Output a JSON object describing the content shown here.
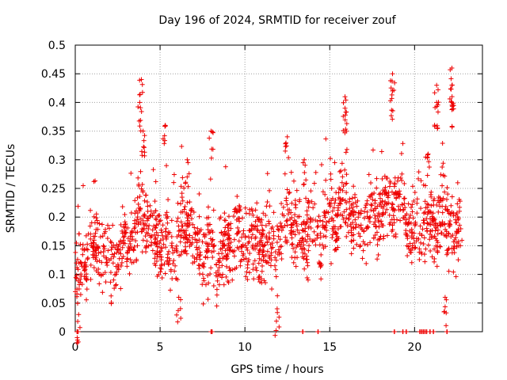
{
  "chart_data": {
    "type": "scatter",
    "title": "Day 196 of 2024, SRMTID for receiver zouf",
    "xlabel": "GPS time / hours",
    "ylabel": "SRMTID / TECUs",
    "xlim": [
      0,
      24
    ],
    "ylim": [
      0,
      0.5
    ],
    "x_ticks": [
      0,
      5,
      10,
      15,
      20
    ],
    "x_tick_labels": [
      "0",
      "5",
      "10",
      "15",
      "20"
    ],
    "y_ticks": [
      0,
      0.05,
      0.1,
      0.15,
      0.2,
      0.25,
      0.3,
      0.35,
      0.4,
      0.45,
      0.5
    ],
    "y_tick_labels": [
      "0",
      "0.05",
      "0.1",
      "0.15",
      "0.2",
      "0.25",
      "0.3",
      "0.35",
      "0.4",
      "0.45",
      "0.5"
    ],
    "grid": true,
    "marker": "+",
    "series_color": "#ee0000",
    "series": [
      {
        "name": "SRMTID",
        "profile": [
          [
            0.0,
            0.09
          ],
          [
            0.5,
            0.1
          ],
          [
            1.0,
            0.13
          ],
          [
            1.5,
            0.14
          ],
          [
            2.0,
            0.13
          ],
          [
            2.5,
            0.14
          ],
          [
            3.0,
            0.15
          ],
          [
            3.5,
            0.16
          ],
          [
            4.0,
            0.2
          ],
          [
            4.5,
            0.18
          ],
          [
            5.0,
            0.17
          ],
          [
            5.5,
            0.16
          ],
          [
            6.0,
            0.14
          ],
          [
            6.5,
            0.18
          ],
          [
            7.0,
            0.15
          ],
          [
            7.5,
            0.14
          ],
          [
            8.0,
            0.15
          ],
          [
            8.5,
            0.14
          ],
          [
            9.0,
            0.15
          ],
          [
            9.5,
            0.16
          ],
          [
            10.0,
            0.15
          ],
          [
            10.5,
            0.16
          ],
          [
            11.0,
            0.17
          ],
          [
            11.5,
            0.15
          ],
          [
            12.0,
            0.16
          ],
          [
            12.5,
            0.18
          ],
          [
            13.0,
            0.16
          ],
          [
            13.5,
            0.17
          ],
          [
            14.0,
            0.19
          ],
          [
            14.5,
            0.18
          ],
          [
            15.0,
            0.2
          ],
          [
            15.5,
            0.19
          ],
          [
            16.0,
            0.22
          ],
          [
            16.5,
            0.18
          ],
          [
            17.0,
            0.2
          ],
          [
            17.5,
            0.21
          ],
          [
            18.0,
            0.2
          ],
          [
            18.5,
            0.22
          ],
          [
            19.0,
            0.21
          ],
          [
            19.5,
            0.2
          ],
          [
            20.0,
            0.19
          ],
          [
            20.5,
            0.2
          ],
          [
            21.0,
            0.18
          ],
          [
            21.5,
            0.19
          ],
          [
            22.0,
            0.17
          ],
          [
            22.5,
            0.16
          ],
          [
            22.8,
            0.15
          ]
        ],
        "spread": 0.045,
        "peaks": [
          {
            "x": 3.9,
            "y": 0.44
          },
          {
            "x": 3.8,
            "y": 0.4
          },
          {
            "x": 4.0,
            "y": 0.35
          },
          {
            "x": 5.3,
            "y": 0.36
          },
          {
            "x": 6.6,
            "y": 0.3
          },
          {
            "x": 8.0,
            "y": 0.35
          },
          {
            "x": 12.5,
            "y": 0.34
          },
          {
            "x": 13.5,
            "y": 0.3
          },
          {
            "x": 15.9,
            "y": 0.41
          },
          {
            "x": 15.9,
            "y": 0.39
          },
          {
            "x": 18.7,
            "y": 0.45
          },
          {
            "x": 18.7,
            "y": 0.42
          },
          {
            "x": 20.8,
            "y": 0.31
          },
          {
            "x": 21.3,
            "y": 0.43
          },
          {
            "x": 21.3,
            "y": 0.4
          },
          {
            "x": 22.2,
            "y": 0.46
          },
          {
            "x": 22.2,
            "y": 0.43
          },
          {
            "x": 22.2,
            "y": 0.4
          },
          {
            "x": 0.2,
            "y": 0.03
          },
          {
            "x": 11.9,
            "y": 0.04
          },
          {
            "x": 6.1,
            "y": 0.06
          },
          {
            "x": 21.8,
            "y": 0.06
          }
        ],
        "zero_values_x": [
          0.1,
          0.15,
          8.0,
          8.05,
          13.4,
          14.3,
          18.8,
          19.3,
          19.5,
          20.3,
          20.4,
          20.5,
          20.6,
          20.7,
          20.9,
          21.1,
          21.9
        ]
      }
    ]
  }
}
